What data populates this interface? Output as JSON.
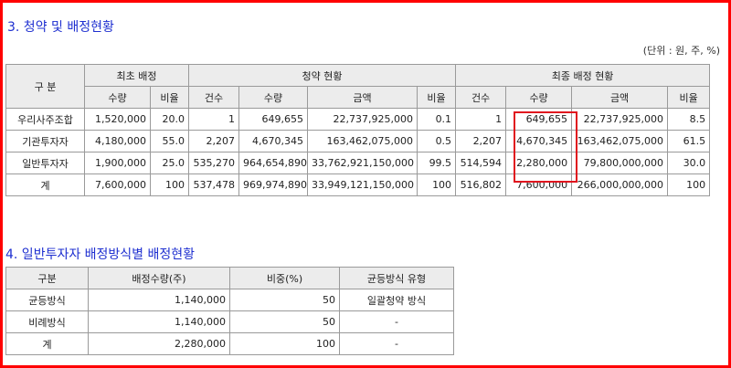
{
  "section3": {
    "title": "3. 청약 및 배정현황",
    "unit": "(단위 : 원, 주, %)",
    "headers": {
      "gubun": "구 분",
      "initial_alloc": "최초 배정",
      "subscription_status": "청약 현황",
      "final_alloc_status": "최종 배정 현황",
      "qty": "수량",
      "ratio": "비율",
      "count": "건수",
      "amount": "금액"
    },
    "rows": [
      {
        "label": "우리사주조합",
        "init_qty": "1,520,000",
        "init_ratio": "20.0",
        "sub_count": "1",
        "sub_qty": "649,655",
        "sub_amount": "22,737,925,000",
        "sub_ratio": "0.1",
        "fin_count": "1",
        "fin_qty": "649,655",
        "fin_amount": "22,737,925,000",
        "fin_ratio": "8.5"
      },
      {
        "label": "기관투자자",
        "init_qty": "4,180,000",
        "init_ratio": "55.0",
        "sub_count": "2,207",
        "sub_qty": "4,670,345",
        "sub_amount": "163,462,075,000",
        "sub_ratio": "0.5",
        "fin_count": "2,207",
        "fin_qty": "4,670,345",
        "fin_amount": "163,462,075,000",
        "fin_ratio": "61.5"
      },
      {
        "label": "일반투자자",
        "init_qty": "1,900,000",
        "init_ratio": "25.0",
        "sub_count": "535,270",
        "sub_qty": "964,654,890",
        "sub_amount": "33,762,921,150,000",
        "sub_ratio": "99.5",
        "fin_count": "514,594",
        "fin_qty": "2,280,000",
        "fin_amount": "79,800,000,000",
        "fin_ratio": "30.0"
      },
      {
        "label": "계",
        "init_qty": "7,600,000",
        "init_ratio": "100",
        "sub_count": "537,478",
        "sub_qty": "969,974,890",
        "sub_amount": "33,949,121,150,000",
        "sub_ratio": "100",
        "fin_count": "516,802",
        "fin_qty": "7,600,000",
        "fin_amount": "266,000,000,000",
        "fin_ratio": "100"
      }
    ]
  },
  "section4": {
    "title": "4. 일반투자자 배정방식별 배정현황",
    "headers": {
      "gubun": "구분",
      "alloc_qty": "배정수량(주)",
      "ratio": "비중(%)",
      "equal_type": "균등방식 유형"
    },
    "rows": [
      {
        "label": "균등방식",
        "qty": "1,140,000",
        "ratio": "50",
        "type": "일괄청약 방식"
      },
      {
        "label": "비례방식",
        "qty": "1,140,000",
        "ratio": "50",
        "type": "-"
      },
      {
        "label": "계",
        "qty": "2,280,000",
        "ratio": "100",
        "type": "-"
      }
    ]
  },
  "colors": {
    "frame": "#ff0000",
    "title": "#1e2fd0",
    "highlight": "#e0141e",
    "header_bg": "#ececec"
  }
}
